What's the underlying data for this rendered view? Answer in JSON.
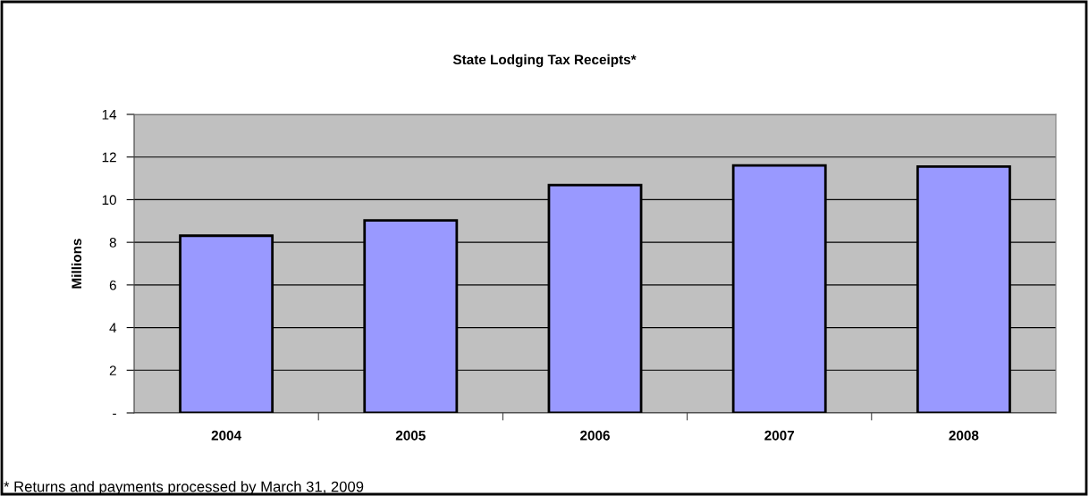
{
  "chart_data": {
    "type": "bar",
    "title": "State Lodging Tax Receipts*",
    "ylabel": "Millions",
    "categories": [
      "2004",
      "2005",
      "2006",
      "2007",
      "2008"
    ],
    "values": [
      8.31,
      9.03,
      10.68,
      11.61,
      11.55
    ],
    "color": "#9999ff",
    "ylim": [
      0,
      14
    ],
    "yticks": [
      {
        "value": 0,
        "label": "-"
      },
      2,
      4,
      6,
      8,
      10,
      12,
      14
    ],
    "grid": "y",
    "legend": false,
    "annotations": [
      "* Returns and payments processed by March 31, 2009"
    ]
  }
}
